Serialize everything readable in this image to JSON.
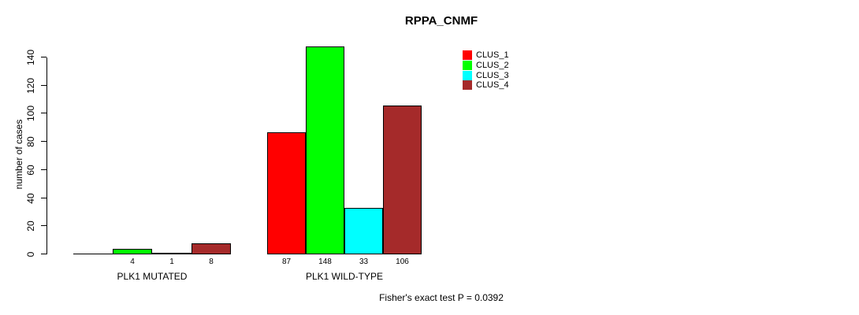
{
  "chart_data": {
    "type": "bar",
    "title": "RPPA_CNMF",
    "xlabel": "",
    "ylabel": "number of cases",
    "ylim": [
      0,
      140
    ],
    "yticks": [
      0,
      20,
      40,
      60,
      80,
      100,
      120,
      140
    ],
    "grid": false,
    "legend_position": "top-right",
    "categories": [
      "PLK1 MUTATED",
      "PLK1 WILD-TYPE"
    ],
    "series": [
      {
        "name": "CLUS_1",
        "color": "#FF0000",
        "values": [
          0,
          87
        ]
      },
      {
        "name": "CLUS_2",
        "color": "#00FF00",
        "values": [
          4,
          148
        ]
      },
      {
        "name": "CLUS_3",
        "color": "#00FFFF",
        "values": [
          1,
          33
        ]
      },
      {
        "name": "CLUS_4",
        "color": "#A52A2A",
        "values": [
          8,
          106
        ]
      }
    ],
    "bar_count_labels": [
      [
        "",
        "4",
        "1",
        "8"
      ],
      [
        "87",
        "148",
        "33",
        "106"
      ]
    ],
    "annotation": "Fisher's exact test P = 0.0392",
    "colors": {
      "axis": "#000000",
      "text": "#000000",
      "background": "#FFFFFF"
    }
  }
}
